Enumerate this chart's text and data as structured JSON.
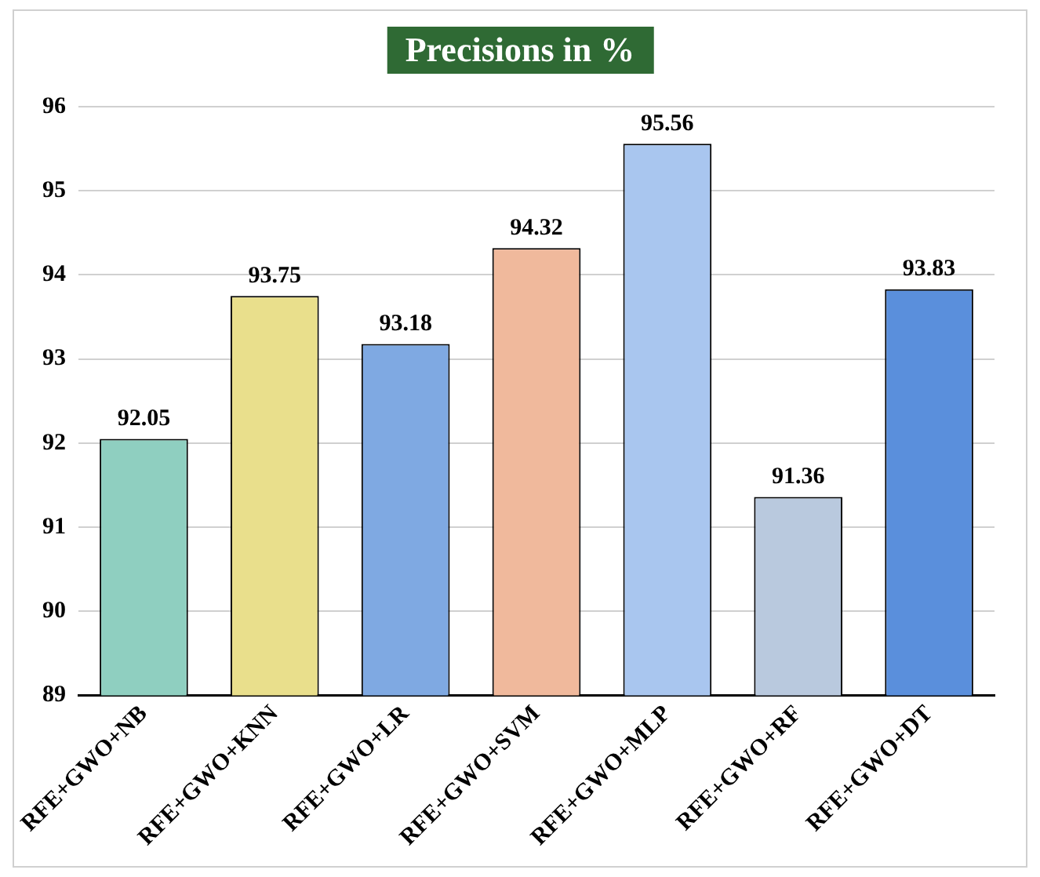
{
  "chart_data": {
    "type": "bar",
    "title": "Precisions in %",
    "categories": [
      "RFE+GWO+NB",
      "RFE+GWO+KNN",
      "RFE+GWO+LR",
      "RFE+GWO+SVM",
      "RFE+GWO+MLP",
      "RFE+GWO+RF",
      "RFE+GWO+DT"
    ],
    "values": [
      92.05,
      93.75,
      93.18,
      94.32,
      95.56,
      91.36,
      93.83
    ],
    "colors": [
      "#8fcfc0",
      "#e9df8c",
      "#7fa9e2",
      "#f0b99c",
      "#a9c6ef",
      "#b9c9de",
      "#5a8fdc"
    ],
    "ylim": [
      89,
      96
    ],
    "yticks": [
      89,
      90,
      91,
      92,
      93,
      94,
      95,
      96
    ],
    "grid": "y",
    "data_labels": true,
    "legend": false
  }
}
